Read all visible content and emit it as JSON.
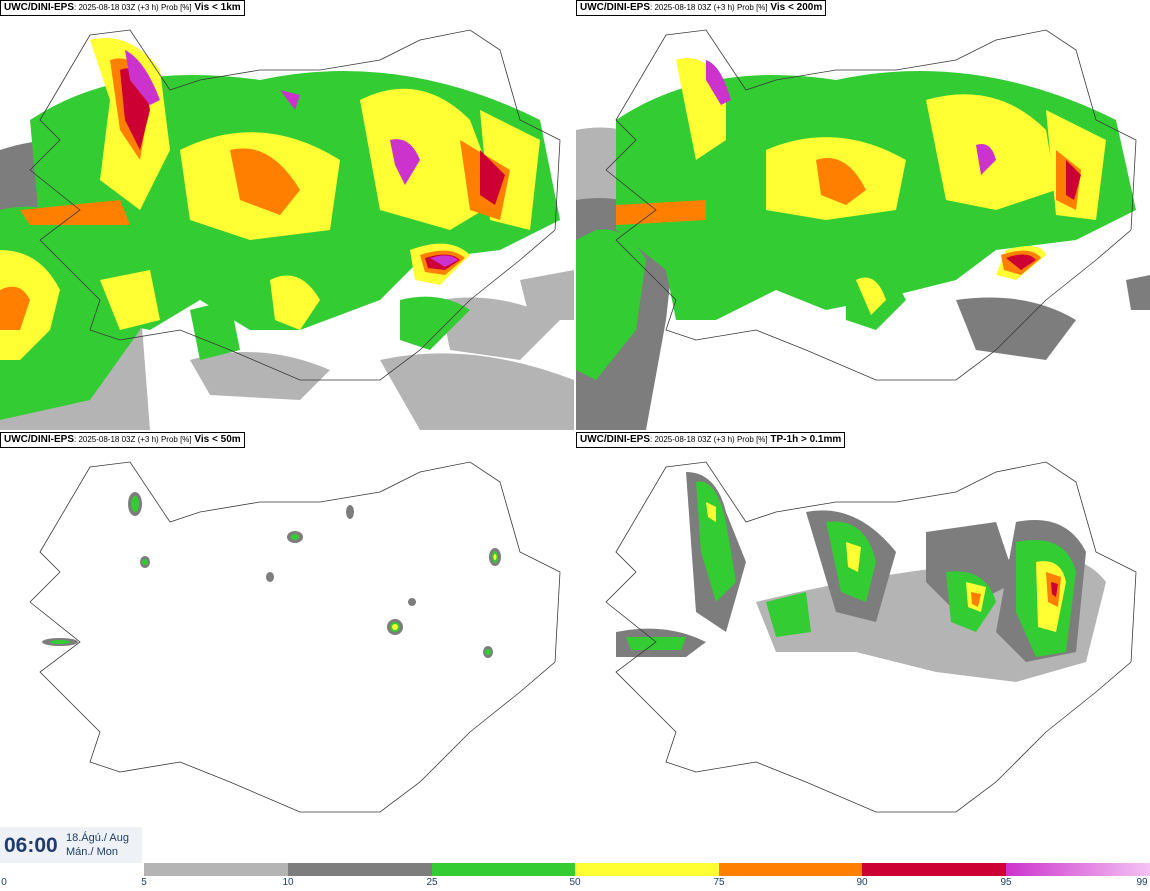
{
  "panels": [
    {
      "model": "UWC/DINI-EPS",
      "run": ": 2025-08-18 03Z (+3 h) Prob [%]",
      "variable": "Vis < 1km"
    },
    {
      "model": "UWC/DINI-EPS",
      "run": ": 2025-08-18 03Z (+3 h) Prob [%]",
      "variable": "Vis < 200m"
    },
    {
      "model": "UWC/DINI-EPS",
      "run": ": 2025-08-18 03Z (+3 h) Prob [%]",
      "variable": "Vis < 50m"
    },
    {
      "model": "UWC/DINI-EPS",
      "run": ": 2025-08-18 03Z (+3 h) Prob [%]",
      "variable": "TP-1h > 0.1mm"
    }
  ],
  "valid_time": {
    "time": "06:00",
    "date": "18.Ágú./ Aug",
    "weekday": "Mán./ Mon"
  },
  "colorbar": {
    "ticks": [
      "0",
      "5",
      "10",
      "25",
      "50",
      "75",
      "90",
      "95",
      "99"
    ],
    "colors": [
      "#ffffff",
      "#b4b4b4",
      "#7d7d7d",
      "#33cc33",
      "#ffff33",
      "#ff7f00",
      "#cc0033",
      "#cc33cc",
      "#f4c3f4"
    ]
  }
}
